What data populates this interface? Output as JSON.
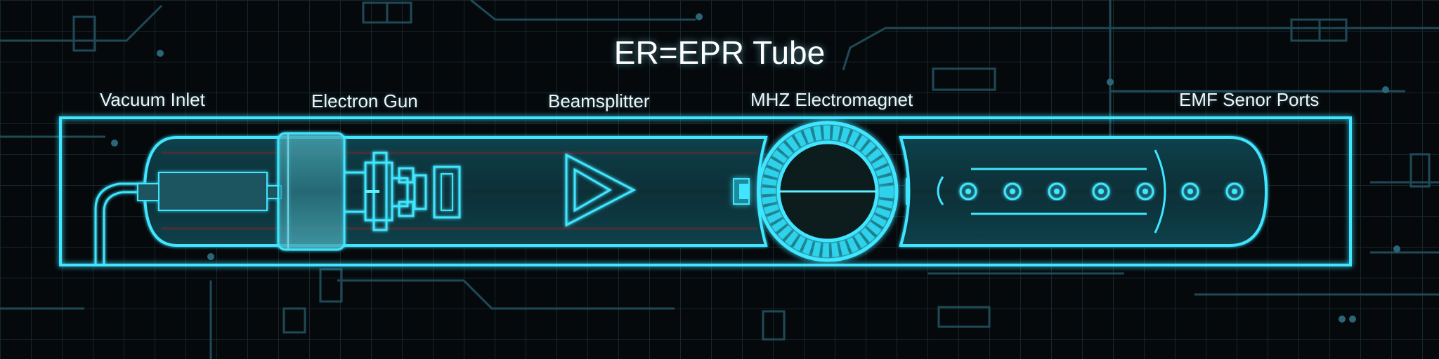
{
  "title": "ER=EPR Tube",
  "components": [
    {
      "label": "Vacuum Inlet"
    },
    {
      "label": "Electron Gun"
    },
    {
      "label": "Beamsplitter"
    },
    {
      "label": "MHZ Electromagnet"
    },
    {
      "label": "EMF Senor Ports"
    }
  ],
  "colors": {
    "background": "#05090c",
    "grid": "#1a2a30",
    "circuit": "#1e4a58",
    "glow": "#3fe6ff",
    "glass": "#0e3a44",
    "label": "#eef6f8"
  },
  "icons": [
    "vacuum-inlet-pipe-icon",
    "electron-gun-icon",
    "beamsplitter-prism-icon",
    "electromagnet-ring-icon",
    "sensor-port-icon"
  ]
}
